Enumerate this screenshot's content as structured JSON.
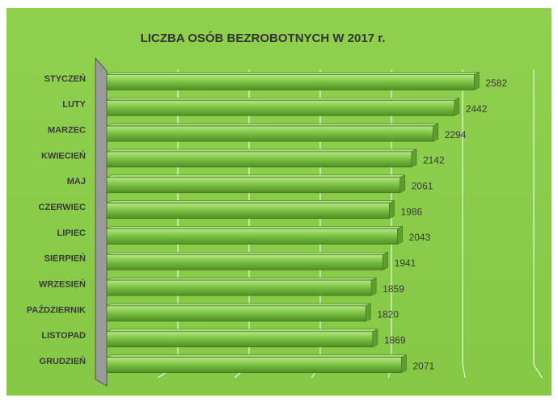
{
  "chart_data": {
    "type": "bar",
    "orientation": "horizontal",
    "title": "LICZBA OSÓB BEZROBOTNYCH W 2017 r.",
    "categories": [
      "STYCZEŃ",
      "LUTY",
      "MARZEC",
      "KWIECIEŃ",
      "MAJ",
      "CZERWIEC",
      "LIPIEC",
      "SIERPIEŃ",
      "WRZESIEŃ",
      "PAŹDZIERNIK",
      "LISTOPAD",
      "GRUDZIEŃ"
    ],
    "values": [
      2582,
      2442,
      2294,
      2142,
      2061,
      1986,
      2043,
      1941,
      1859,
      1820,
      1869,
      2071
    ],
    "color": "#6fbf3a",
    "xlim": [
      0,
      3000
    ],
    "xticks": [
      0,
      500,
      1000,
      1500,
      2000,
      2500,
      3000
    ],
    "grid": true
  }
}
